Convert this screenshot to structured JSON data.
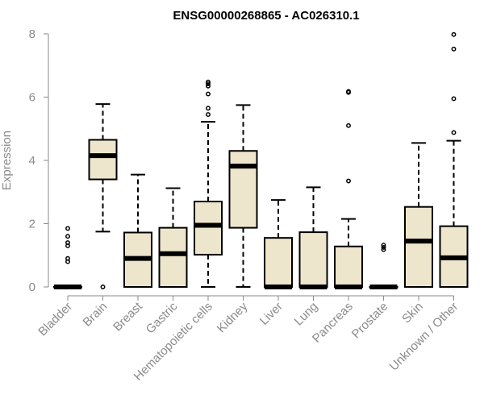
{
  "chart_data": {
    "type": "boxplot",
    "title": "ENSG00000268865 - AC026310.1",
    "xlabel": "",
    "ylabel": "Expression",
    "ylim": [
      0,
      8
    ],
    "yticks": [
      0,
      2,
      4,
      6,
      8
    ],
    "grid": false,
    "box_color": "#ede6cc",
    "line_color": "#000000",
    "axis_color": "#8a8a8a",
    "categories": [
      "Bladder",
      "Brain",
      "Breast",
      "Gastric",
      "Hematopoietic cells",
      "Kidney",
      "Liver",
      "Lung",
      "Pancreas",
      "Prostate",
      "Skin",
      "Unknown / Other"
    ],
    "boxes": [
      {
        "category": "Bladder",
        "whisker_low": 0,
        "q1": 0,
        "median": 0,
        "q3": 0,
        "whisker_high": 0,
        "outliers": [
          0.8,
          0.9,
          1.3,
          1.4,
          1.6,
          1.85
        ]
      },
      {
        "category": "Brain",
        "whisker_low": 1.75,
        "q1": 3.4,
        "median": 4.15,
        "q3": 4.65,
        "whisker_high": 5.78,
        "outliers": [
          0
        ]
      },
      {
        "category": "Breast",
        "whisker_low": 0,
        "q1": 0,
        "median": 0.9,
        "q3": 1.72,
        "whisker_high": 3.55,
        "outliers": []
      },
      {
        "category": "Gastric",
        "whisker_low": 0,
        "q1": 0,
        "median": 1.05,
        "q3": 1.87,
        "whisker_high": 3.12,
        "outliers": []
      },
      {
        "category": "Hematopoietic cells",
        "whisker_low": 0,
        "q1": 1.02,
        "median": 1.95,
        "q3": 2.7,
        "whisker_high": 5.22,
        "outliers": [
          5.45,
          5.65,
          6.1,
          6.35,
          6.42,
          6.48
        ]
      },
      {
        "category": "Kidney",
        "whisker_low": 0,
        "q1": 1.87,
        "median": 3.82,
        "q3": 4.3,
        "whisker_high": 5.75,
        "outliers": []
      },
      {
        "category": "Liver",
        "whisker_low": 0,
        "q1": 0,
        "median": 0,
        "q3": 1.55,
        "whisker_high": 2.75,
        "outliers": []
      },
      {
        "category": "Lung",
        "whisker_low": 0,
        "q1": 0,
        "median": 0,
        "q3": 1.73,
        "whisker_high": 3.15,
        "outliers": []
      },
      {
        "category": "Pancreas",
        "whisker_low": 0,
        "q1": 0,
        "median": 0,
        "q3": 1.28,
        "whisker_high": 2.15,
        "outliers": [
          3.35,
          5.1,
          6.15,
          6.18
        ]
      },
      {
        "category": "Prostate",
        "whisker_low": 0,
        "q1": 0,
        "median": 0,
        "q3": 0,
        "whisker_high": 0,
        "outliers": [
          1.18,
          1.25,
          1.32
        ]
      },
      {
        "category": "Skin",
        "whisker_low": 0,
        "q1": 0,
        "median": 1.45,
        "q3": 2.53,
        "whisker_high": 4.55,
        "outliers": []
      },
      {
        "category": "Unknown / Other",
        "whisker_low": 0,
        "q1": 0,
        "median": 0.92,
        "q3": 1.92,
        "whisker_high": 4.62,
        "outliers": [
          4.88,
          5.95,
          7.52,
          7.98
        ]
      }
    ]
  }
}
